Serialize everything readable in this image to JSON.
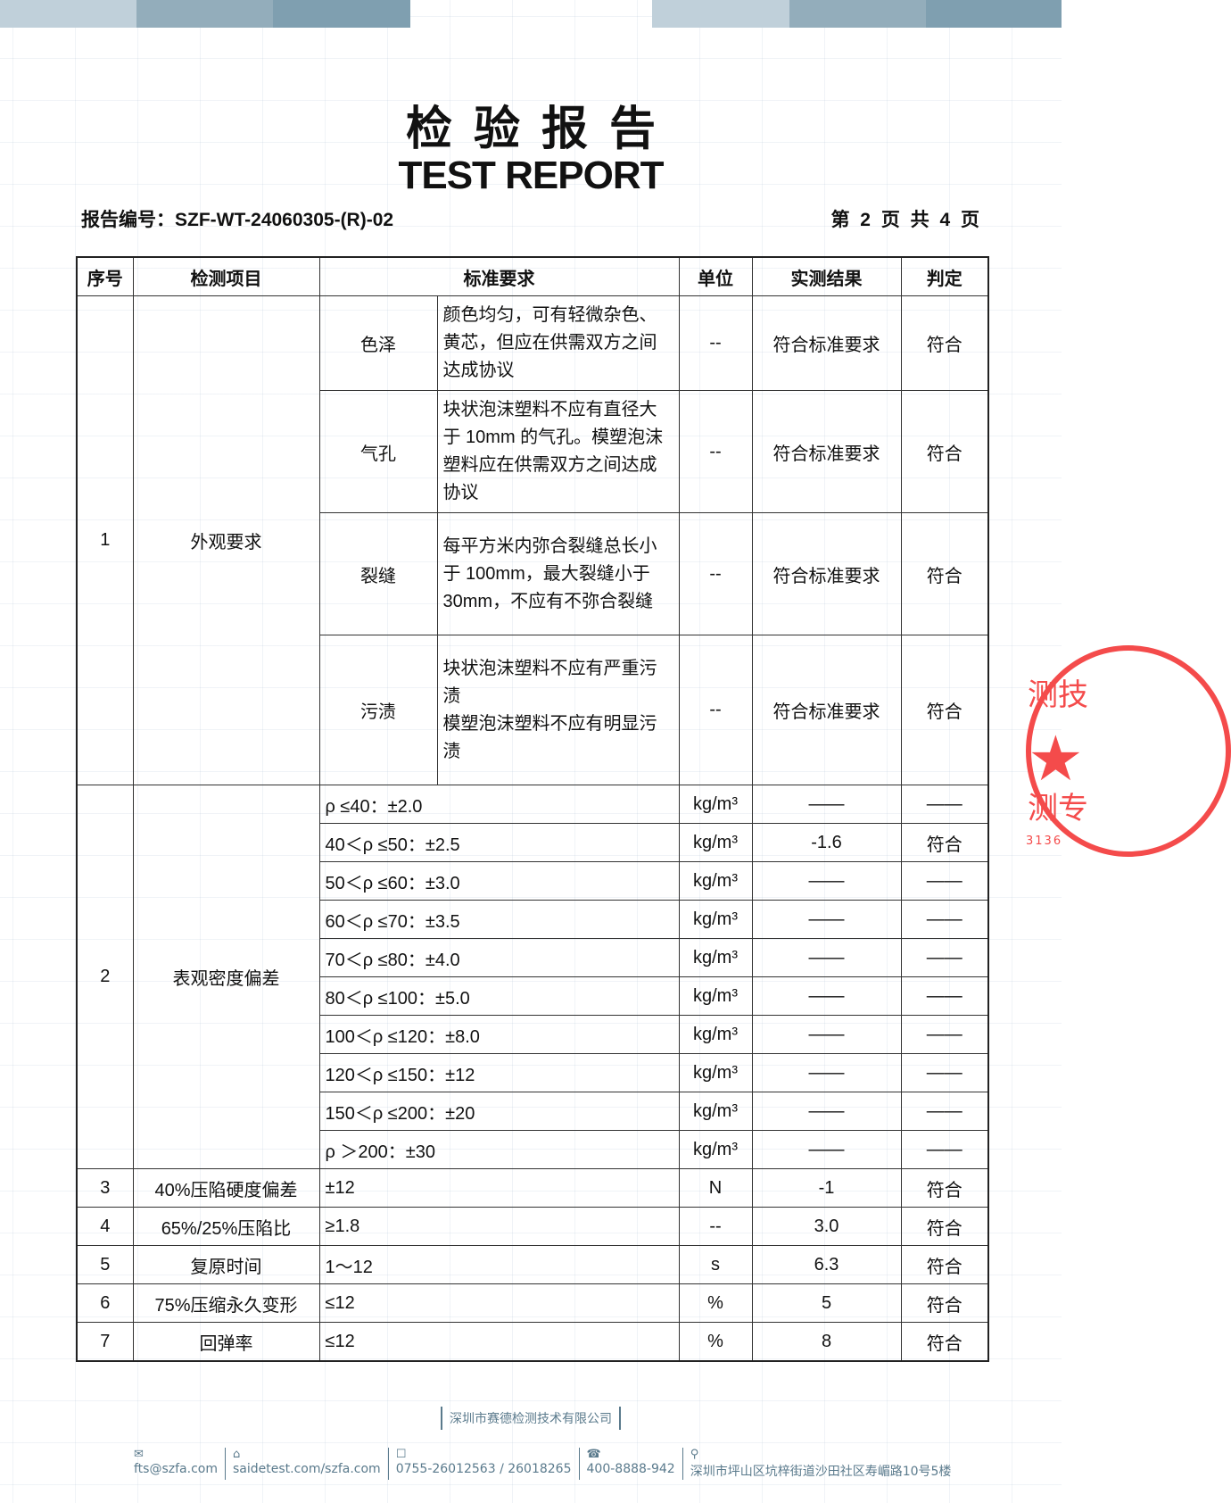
{
  "header": {
    "colors": {
      "bar_light": "#c0d0da",
      "bar_mid": "#93adbb",
      "bar_dark": "#7f9fb0"
    },
    "title_cn": "检验报告",
    "title_en": "TEST REPORT",
    "report_no_label": "报告编号：",
    "report_no": "SZF-WT-24060305-(R)-02",
    "page_info": "第 2 页 共 4 页"
  },
  "table": {
    "headers": [
      "序号",
      "检测项目",
      "标准要求",
      "单位",
      "实测结果",
      "判定"
    ],
    "item1": {
      "no": "1",
      "name": "外观要求",
      "subs": [
        {
          "name": "色泽",
          "req": "颜色均匀，可有轻微杂色、黄芯，但应在供需双方之间达成协议",
          "unit": "--",
          "result": "符合标准要求",
          "verdict": "符合"
        },
        {
          "name": "气孔",
          "req": "块状泡沫塑料不应有直径大于 10mm 的气孔。模塑泡沫塑料应在供需双方之间达成协议",
          "unit": "--",
          "result": "符合标准要求",
          "verdict": "符合"
        },
        {
          "name": "裂缝",
          "req": "每平方米内弥合裂缝总长小于 100mm，最大裂缝小于 30mm，不应有不弥合裂缝",
          "unit": "--",
          "result": "符合标准要求",
          "verdict": "符合"
        },
        {
          "name": "污渍",
          "req": "块状泡沫塑料不应有严重污渍",
          "req2": "模塑泡沫塑料不应有明显污渍",
          "unit": "--",
          "result": "符合标准要求",
          "verdict": "符合"
        }
      ]
    },
    "item2": {
      "no": "2",
      "name": "表观密度偏差",
      "rows": [
        {
          "req": "ρ ≤40：±2.0",
          "unit": "kg/m³",
          "result": "——",
          "verdict": "——"
        },
        {
          "req": "40＜ρ ≤50：±2.5",
          "unit": "kg/m³",
          "result": "-1.6",
          "verdict": "符合"
        },
        {
          "req": "50＜ρ ≤60：±3.0",
          "unit": "kg/m³",
          "result": "——",
          "verdict": "——"
        },
        {
          "req": "60＜ρ ≤70：±3.5",
          "unit": "kg/m³",
          "result": "——",
          "verdict": "——"
        },
        {
          "req": "70＜ρ ≤80：±4.0",
          "unit": "kg/m³",
          "result": "——",
          "verdict": "——"
        },
        {
          "req": "80＜ρ ≤100：±5.0",
          "unit": "kg/m³",
          "result": "——",
          "verdict": "——"
        },
        {
          "req": "100＜ρ ≤120：±8.0",
          "unit": "kg/m³",
          "result": "——",
          "verdict": "——"
        },
        {
          "req": "120＜ρ ≤150：±12",
          "unit": "kg/m³",
          "result": "——",
          "verdict": "——"
        },
        {
          "req": "150＜ρ ≤200：±20",
          "unit": "kg/m³",
          "result": "——",
          "verdict": "——"
        },
        {
          "req": "ρ ＞200：±30",
          "unit": "kg/m³",
          "result": "——",
          "verdict": "——"
        }
      ]
    },
    "others": [
      {
        "no": "3",
        "name": "40%压陷硬度偏差",
        "req": "±12",
        "unit": "N",
        "result": "-1",
        "verdict": "符合"
      },
      {
        "no": "4",
        "name": "65%/25%压陷比",
        "req": "≥1.8",
        "unit": "--",
        "result": "3.0",
        "verdict": "符合"
      },
      {
        "no": "5",
        "name": "复原时间",
        "req": "1～12",
        "unit": "s",
        "result": "6.3",
        "verdict": "符合"
      },
      {
        "no": "6",
        "name": "75%压缩永久变形",
        "req": "≤12",
        "unit": "%",
        "result": "5",
        "verdict": "符合"
      },
      {
        "no": "7",
        "name": "回弹率",
        "req": "≤12",
        "unit": "%",
        "result": "8",
        "verdict": "符合"
      }
    ]
  },
  "stamp": {
    "text_top": "测技",
    "text_bottom": "测专",
    "number": "3136",
    "color": "#f44b4b"
  },
  "footer": {
    "company": "深圳市赛德检测技术有限公司",
    "email": "fts@szfa.com",
    "website": "saidetest.com/szfa.com",
    "phone": "0755-26012563 / 26018265",
    "hotline": "400-8888-942",
    "address": "深圳市坪山区坑梓街道沙田社区寿嵋路10号5楼"
  }
}
